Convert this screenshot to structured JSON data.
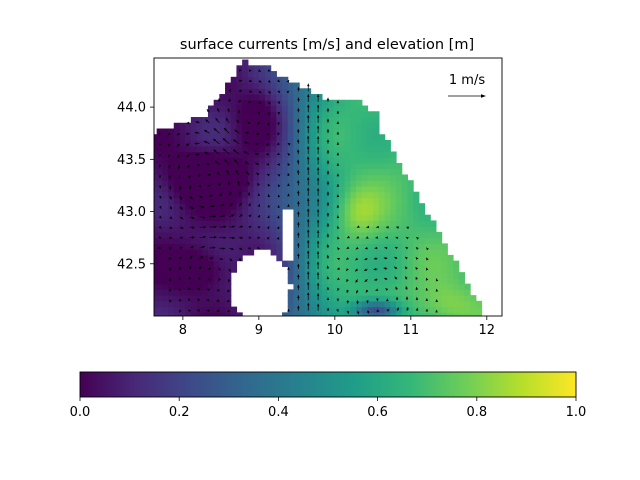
{
  "chart_data": {
    "type": "heatmap",
    "title": "surface currents [m/s] and elevation [m]",
    "xlabel": "",
    "ylabel": "",
    "xlim": [
      7.62,
      12.2
    ],
    "ylim": [
      42.0,
      44.47
    ],
    "x_ticks": [
      8,
      9,
      10,
      11,
      12
    ],
    "y_ticks": [
      42.5,
      43.0,
      43.5,
      44.0
    ],
    "x_tick_labels": [
      "8",
      "9",
      "10",
      "11",
      "12"
    ],
    "y_tick_labels": [
      "42.5",
      "43.0",
      "43.5",
      "44.0"
    ],
    "colormap": "viridis",
    "colorbar": {
      "orientation": "horizontal",
      "range": [
        0.0,
        1.0
      ],
      "ticks": [
        0.0,
        0.2,
        0.4,
        0.6,
        0.8,
        1.0
      ],
      "tick_labels": [
        "0.0",
        "0.2",
        "0.4",
        "0.6",
        "0.8",
        "1.0"
      ]
    },
    "quiver_key": {
      "label": "1 m/s",
      "value": 1.0
    },
    "grid": false,
    "field_features": {
      "low_centers": [
        [
          8.35,
          43.32
        ],
        [
          8.2,
          42.45
        ],
        [
          10.5,
          42.05
        ]
      ],
      "high_regions": [
        [
          10.3,
          43.0
        ],
        [
          10.6,
          42.4
        ],
        [
          11.5,
          42.1
        ],
        [
          9.9,
          43.5
        ]
      ],
      "islands": [
        [
          9.05,
          42.3
        ]
      ]
    }
  },
  "colors": {
    "cmap": [
      "#440154",
      "#482878",
      "#3e4989",
      "#31688e",
      "#26828e",
      "#1f9e89",
      "#35b779",
      "#6ece58",
      "#b5de2b",
      "#fde725"
    ],
    "arrow": "#000000",
    "axes": "#000000",
    "background": "#ffffff"
  }
}
